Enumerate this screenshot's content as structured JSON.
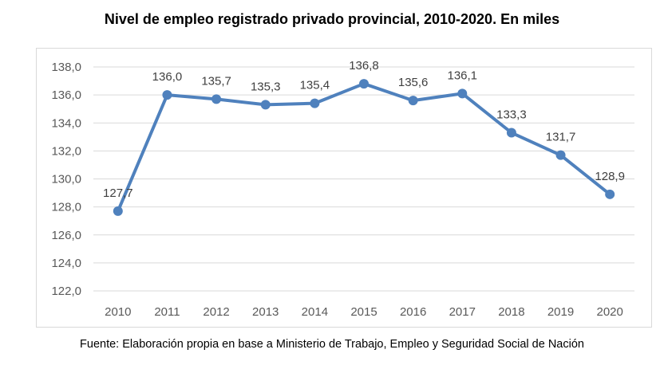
{
  "chart_data": {
    "type": "line",
    "title": "Nivel de empleo registrado privado provincial, 2010-2020. En miles",
    "source": "Fuente: Elaboración propia en base a Ministerio de Trabajo, Empleo y Seguridad Social de Nación",
    "categories": [
      "2010",
      "2011",
      "2012",
      "2013",
      "2014",
      "2015",
      "2016",
      "2017",
      "2018",
      "2019",
      "2020"
    ],
    "series": [
      {
        "values": [
          127.7,
          136.0,
          135.7,
          135.3,
          135.4,
          136.8,
          135.6,
          136.1,
          133.3,
          131.7,
          128.9
        ]
      }
    ],
    "data_labels": [
      "127,7",
      "136,0",
      "135,7",
      "135,3",
      "135,4",
      "136,8",
      "135,6",
      "136,1",
      "133,3",
      "131,7",
      "128,9"
    ],
    "y_ticks": [
      "122,0",
      "124,0",
      "126,0",
      "128,0",
      "130,0",
      "132,0",
      "134,0",
      "136,0",
      "138,0"
    ],
    "ylim": [
      122,
      138
    ],
    "grid": true,
    "line_color": "#4f81bd",
    "grid_color": "#d9d9d9"
  }
}
